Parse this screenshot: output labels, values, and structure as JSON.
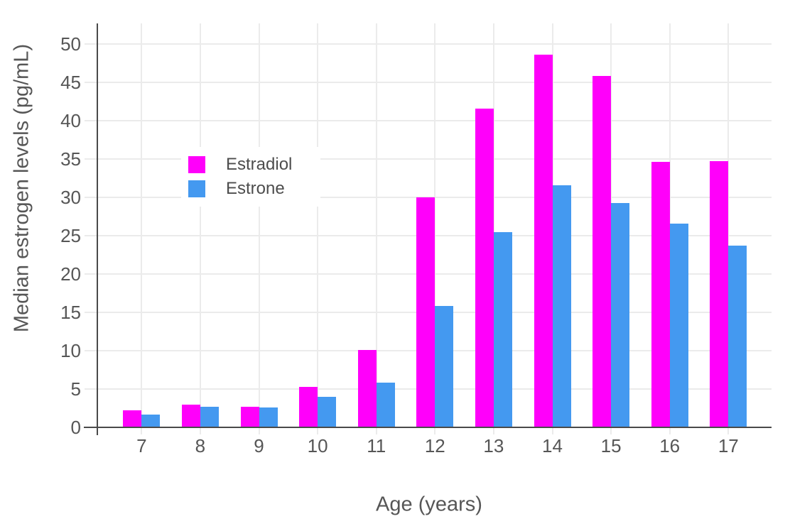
{
  "chart_data": {
    "type": "bar",
    "title": "",
    "xlabel": "Age (years)",
    "ylabel": "Median estrogen levels (pg/mL)",
    "categories": [
      "7",
      "8",
      "9",
      "10",
      "11",
      "12",
      "13",
      "14",
      "15",
      "16",
      "17"
    ],
    "series": [
      {
        "name": "Estradiol",
        "color": "#ff00fa",
        "values": [
          2.2,
          3.0,
          2.7,
          5.3,
          10.1,
          30.0,
          41.6,
          48.6,
          45.8,
          34.6,
          34.7
        ]
      },
      {
        "name": "Estrone",
        "color": "#4499f0",
        "values": [
          1.7,
          2.7,
          2.6,
          4.0,
          5.8,
          15.8,
          25.5,
          31.6,
          29.3,
          26.6,
          23.7
        ]
      }
    ],
    "ylim": [
      0,
      52.7
    ],
    "yticks": [
      0,
      5,
      10,
      15,
      20,
      25,
      30,
      35,
      40,
      45,
      50
    ],
    "grid": true,
    "legend_position": "inside-top-left"
  },
  "colors": {
    "background": "#ffffff",
    "grid": "#ebebeb",
    "axis_line": "#4a4a4a",
    "tick_text": "#565656"
  }
}
